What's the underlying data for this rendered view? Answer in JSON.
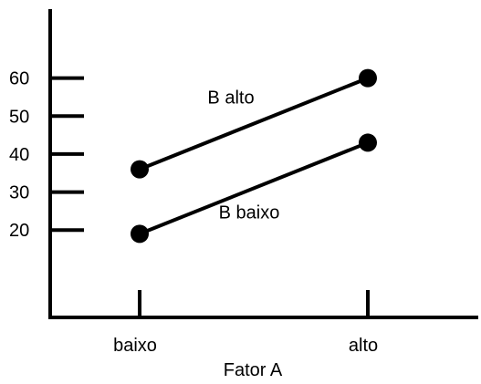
{
  "chart_data": {
    "type": "line",
    "title": "",
    "xlabel": "Fator A",
    "ylabel": "",
    "categories": [
      "baixo",
      "alto"
    ],
    "series": [
      {
        "name": "B alto",
        "values": [
          36,
          60
        ]
      },
      {
        "name": "B baixo",
        "values": [
          19,
          43
        ]
      }
    ],
    "yticks": [
      20,
      30,
      40,
      50,
      60
    ],
    "ylim": [
      -3,
      76
    ],
    "grid": false,
    "legend": "none",
    "line_color": "#000000"
  }
}
